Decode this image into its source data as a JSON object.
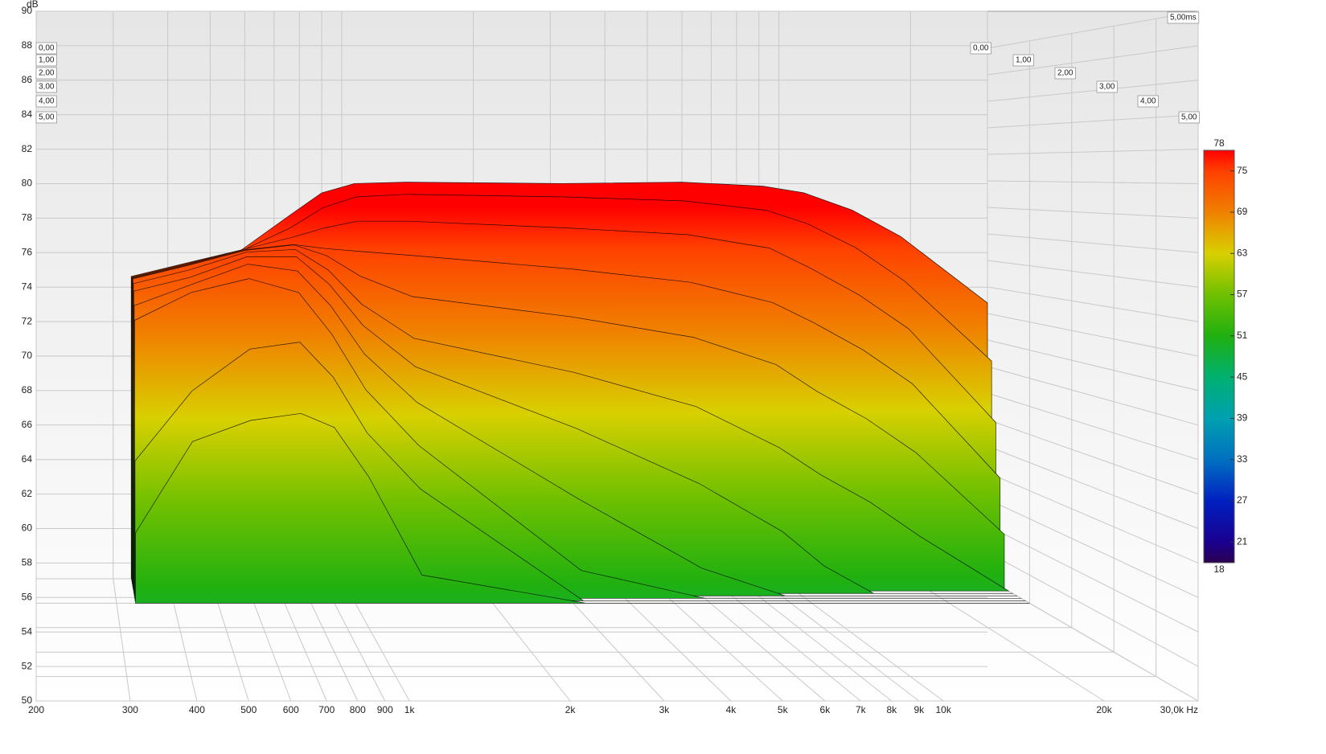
{
  "chart_data": {
    "type": "waterfall",
    "y_label": "dB",
    "time_label": "5,00ms",
    "xscale": "log",
    "xlim": [
      200,
      30000
    ],
    "xticks": [
      200,
      300,
      400,
      500,
      600,
      700,
      800,
      900,
      {
        "value": 1000,
        "label": "1k"
      },
      {
        "value": 2000,
        "label": "2k"
      },
      {
        "value": 3000,
        "label": "3k"
      },
      {
        "value": 4000,
        "label": "4k"
      },
      {
        "value": 5000,
        "label": "5k"
      },
      {
        "value": 6000,
        "label": "6k"
      },
      {
        "value": 7000,
        "label": "7k"
      },
      {
        "value": 8000,
        "label": "8k"
      },
      {
        "value": 9000,
        "label": "9k"
      },
      {
        "value": 10000,
        "label": "10k"
      },
      {
        "value": 20000,
        "label": "20k"
      },
      {
        "value": 30000,
        "label": "30,0k Hz"
      }
    ],
    "ylim": [
      50,
      90
    ],
    "yticks": [
      50,
      52,
      54,
      56,
      58,
      60,
      62,
      64,
      66,
      68,
      70,
      72,
      74,
      76,
      78,
      80,
      82,
      84,
      86,
      88,
      90
    ],
    "tlim": [
      0,
      5
    ],
    "tticks": [
      {
        "value": 0,
        "label": "0,00"
      },
      {
        "value": 1,
        "label": "1,00"
      },
      {
        "value": 2,
        "label": "2,00"
      },
      {
        "value": 3,
        "label": "3,00"
      },
      {
        "value": 4,
        "label": "4,00"
      },
      {
        "value": 5,
        "label": "5,00"
      }
    ],
    "clim": [
      18,
      78
    ],
    "cticks": [
      18,
      21,
      27,
      33,
      39,
      45,
      51,
      57,
      63,
      69,
      75,
      78
    ],
    "ccolors": [
      "#2a0050",
      "#1a0090",
      "#0020c0",
      "#0070c0",
      "#00a0b0",
      "#00b070",
      "#20b010",
      "#70c000",
      "#d8d000",
      "#f08000",
      "#ff4000",
      "#ff0000"
    ],
    "grid": true,
    "x": [
      330,
      440,
      590,
      760,
      900,
      1070,
      1400,
      3200,
      6000,
      9200,
      11400,
      14700,
      19000,
      30000
    ],
    "slices": [
      {
        "t": 0,
        "values": [
          72.8,
          73.8,
          74.8,
          77.4,
          79.1,
          79.8,
          79.9,
          79.8,
          79.9,
          79.6,
          79.1,
          77.8,
          75.8,
          70.8
        ]
      },
      {
        "t": 0.1,
        "values": [
          72.8,
          73.8,
          74.8,
          76.5,
          78.0,
          78.8,
          79.0,
          78.8,
          78.5,
          77.8,
          76.8,
          75.0,
          72.5,
          66.5
        ]
      },
      {
        "t": 0.2,
        "values": [
          72.8,
          73.8,
          74.9,
          75.8,
          76.5,
          77.0,
          77.0,
          76.5,
          76.0,
          75.0,
          73.5,
          71.5,
          69.0,
          62.0
        ]
      },
      {
        "t": 0.3,
        "values": [
          72.8,
          73.8,
          74.9,
          75.3,
          75.0,
          74.8,
          74.5,
          73.5,
          72.5,
          71.0,
          69.5,
          67.5,
          65.0,
          58.0
        ]
      },
      {
        "t": 0.4,
        "values": [
          72.8,
          73.8,
          74.9,
          75.3,
          74.5,
          73.0,
          71.5,
          70.0,
          68.5,
          66.5,
          64.5,
          62.5,
          60.0,
          54.0
        ]
      },
      {
        "t": 0.5,
        "values": [
          72.5,
          73.5,
          74.8,
          75.0,
          73.5,
          71.0,
          68.5,
          66.0,
          63.5,
          60.5,
          58.5,
          56.5,
          54.0,
          50.0
        ]
      },
      {
        "t": 0.6,
        "values": [
          72.0,
          73.0,
          74.5,
          74.5,
          72.5,
          69.5,
          66.5,
          62.0,
          58.0,
          54.5,
          52.0,
          50.0,
          50.0,
          50.0
        ]
      },
      {
        "t": 0.7,
        "values": [
          71.0,
          72.5,
          74.0,
          73.5,
          71.0,
          67.5,
          64.0,
          57.0,
          52.0,
          50.0,
          50.0,
          50.0,
          50.0,
          50.0
        ]
      },
      {
        "t": 0.8,
        "values": [
          70.0,
          72.0,
          73.0,
          72.0,
          69.0,
          65.0,
          61.0,
          52.0,
          50.0,
          50.0,
          50.0,
          50.0,
          50.0,
          50.0
        ]
      },
      {
        "t": 0.9,
        "values": [
          60.0,
          65.0,
          68.0,
          68.5,
          66.0,
          62.0,
          58.0,
          50.0,
          50.0,
          50.0,
          50.0,
          50.0,
          50.0,
          50.0
        ]
      },
      {
        "t": 1.0,
        "values": [
          55.0,
          61.5,
          63.0,
          63.5,
          62.5,
          59.0,
          52.0,
          50.0,
          50.0,
          50.0,
          50.0,
          50.0,
          50.0,
          50.0
        ]
      }
    ]
  }
}
